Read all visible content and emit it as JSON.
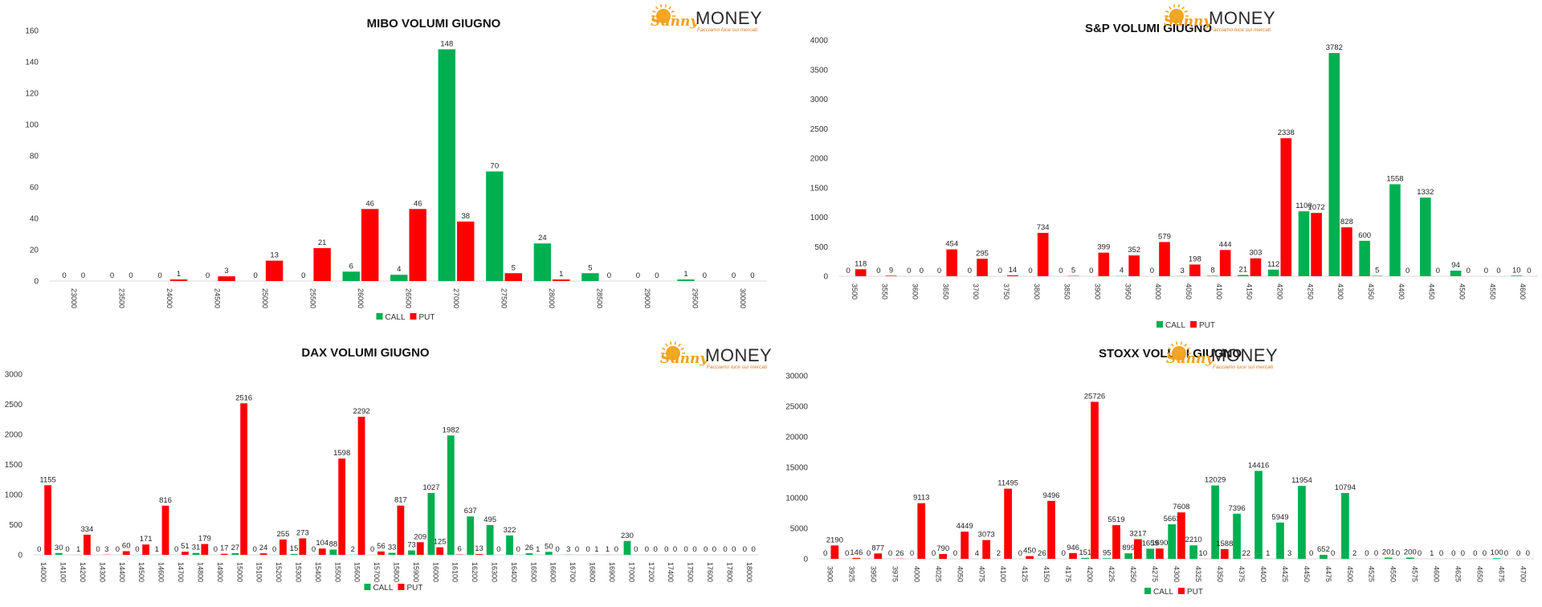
{
  "legend": {
    "call": "CALL",
    "put": "PUT"
  },
  "colors": {
    "call": "#00b050",
    "put": "#ff0000"
  },
  "logo": {
    "sunny": "Sunny",
    "money": "MONEY",
    "tagline": "Facciamo luce sui mercati"
  },
  "chart_data": [
    {
      "type": "bar",
      "title": "MIBO VOLUMI GIUGNO",
      "ylim": [
        0,
        160
      ],
      "yticks": [
        0,
        20,
        40,
        60,
        80,
        100,
        120,
        140,
        160
      ],
      "categories": [
        "23000",
        "23500",
        "24000",
        "24500",
        "25000",
        "25500",
        "26000",
        "26500",
        "27000",
        "27500",
        "28000",
        "28500",
        "29000",
        "29500",
        "30000"
      ],
      "series": [
        {
          "name": "CALL",
          "values": [
            0,
            0,
            0,
            0,
            0,
            0,
            6,
            4,
            148,
            70,
            24,
            5,
            0,
            1,
            0
          ]
        },
        {
          "name": "PUT",
          "values": [
            0,
            0,
            1,
            3,
            13,
            21,
            46,
            46,
            38,
            5,
            1,
            0,
            0,
            0,
            0
          ]
        }
      ],
      "legend_position": "bottom"
    },
    {
      "type": "bar",
      "title": "S&P VOLUMI GIUGNO",
      "ylim": [
        0,
        4000
      ],
      "yticks": [
        0,
        500,
        1000,
        1500,
        2000,
        2500,
        3000,
        3500,
        4000
      ],
      "categories": [
        "3500",
        "3550",
        "3600",
        "3650",
        "3700",
        "3750",
        "3800",
        "3850",
        "3900",
        "3950",
        "4000",
        "4050",
        "4100",
        "4150",
        "4200",
        "4250",
        "4300",
        "4350",
        "4400",
        "4450",
        "4500",
        "4550",
        "4600"
      ],
      "series": [
        {
          "name": "CALL",
          "values": [
            0,
            0,
            0,
            0,
            0,
            0,
            0,
            0,
            0,
            4,
            0,
            3,
            8,
            21,
            112,
            1100,
            3782,
            600,
            1558,
            1332,
            94,
            0,
            10
          ]
        },
        {
          "name": "PUT",
          "values": [
            118,
            9,
            0,
            454,
            295,
            14,
            734,
            5,
            399,
            352,
            579,
            198,
            444,
            303,
            2338,
            1072,
            828,
            5,
            0,
            0,
            0,
            0,
            0
          ]
        }
      ],
      "legend_position": "bottom"
    },
    {
      "type": "bar",
      "title": "DAX VOLUMI GIUGNO",
      "ylim": [
        0,
        3000
      ],
      "yticks": [
        0,
        500,
        1000,
        1500,
        2000,
        2500,
        3000
      ],
      "categories": [
        "14000",
        "14100",
        "14200",
        "14300",
        "14400",
        "14500",
        "14600",
        "14700",
        "14800",
        "14900",
        "15000",
        "15100",
        "15200",
        "15300",
        "15400",
        "15500",
        "15600",
        "15700",
        "15800",
        "15900",
        "16000",
        "16100",
        "16200",
        "16300",
        "16400",
        "16500",
        "16600",
        "16700",
        "16800",
        "16900",
        "17000",
        "17200",
        "17400",
        "17500",
        "17600",
        "17800",
        "18000"
      ],
      "series": [
        {
          "name": "CALL",
          "values": [
            0,
            30,
            1,
            0,
            0,
            0,
            1,
            0,
            31,
            0,
            27,
            0,
            0,
            15,
            0,
            88,
            2,
            0,
            33,
            73,
            1027,
            1982,
            637,
            495,
            322,
            26,
            50,
            3,
            0,
            1,
            230,
            0,
            0,
            0,
            0,
            0,
            0
          ]
        },
        {
          "name": "PUT",
          "values": [
            1155,
            0,
            334,
            3,
            60,
            171,
            816,
            51,
            179,
            17,
            2516,
            24,
            255,
            273,
            104,
            1598,
            2292,
            56,
            817,
            209,
            125,
            6,
            13,
            0,
            0,
            1,
            0,
            0,
            1,
            0,
            0,
            0,
            0,
            0,
            0,
            0,
            0
          ]
        }
      ],
      "legend_position": "bottom"
    },
    {
      "type": "bar",
      "title": "STOXX VOLUMI GIUGNO",
      "ylim": [
        0,
        30000
      ],
      "yticks": [
        0,
        5000,
        10000,
        15000,
        20000,
        25000,
        30000
      ],
      "categories": [
        "3900",
        "3925",
        "3950",
        "3975",
        "4000",
        "4025",
        "4050",
        "4075",
        "4100",
        "4125",
        "4150",
        "4175",
        "4200",
        "4225",
        "4250",
        "4275",
        "4300",
        "4325",
        "4350",
        "4375",
        "4400",
        "4425",
        "4450",
        "4475",
        "4500",
        "4525",
        "4550",
        "4575",
        "4600",
        "4625",
        "4650",
        "4675",
        "4700"
      ],
      "series": [
        {
          "name": "CALL",
          "values": [
            0,
            0,
            0,
            0,
            0,
            0,
            0,
            4,
            2,
            0,
            26,
            0,
            151,
            95,
            899,
            1659,
            5663,
            2210,
            12029,
            7396,
            14416,
            5949,
            11954,
            652,
            10794,
            0,
            201,
            200,
            1,
            0,
            0,
            100,
            0
          ]
        },
        {
          "name": "PUT",
          "values": [
            2190,
            146,
            877,
            26,
            9113,
            790,
            4449,
            3073,
            11495,
            450,
            9496,
            946,
            25726,
            5519,
            3217,
            1690,
            7608,
            10,
            1588,
            22,
            1,
            3,
            0,
            0,
            2,
            0,
            0,
            0,
            0,
            0,
            0,
            0,
            0
          ]
        }
      ],
      "legend_position": "bottom"
    }
  ]
}
